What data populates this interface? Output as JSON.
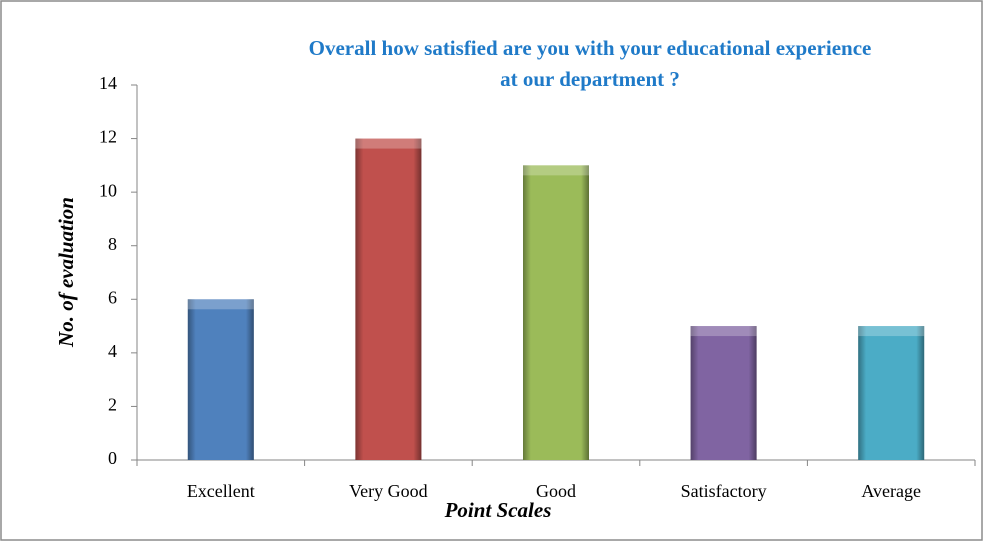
{
  "chart_data": {
    "type": "bar",
    "title": [
      "Overall how satisfied are you with your educational experience",
      "at our department ?"
    ],
    "x_label": "Point Scales",
    "y_label": "No. of evaluation",
    "categories": [
      "Excellent",
      "Very Good",
      "Good",
      "Satisfactory",
      "Average"
    ],
    "values": [
      6,
      12,
      11,
      5,
      5
    ],
    "colors": [
      "#4f81bd",
      "#c0504d",
      "#9bbb59",
      "#8064a2",
      "#4bacc6"
    ],
    "ylim": [
      0,
      14
    ],
    "yticks": [
      0,
      2,
      4,
      6,
      8,
      10,
      12,
      14
    ],
    "grid": false
  }
}
